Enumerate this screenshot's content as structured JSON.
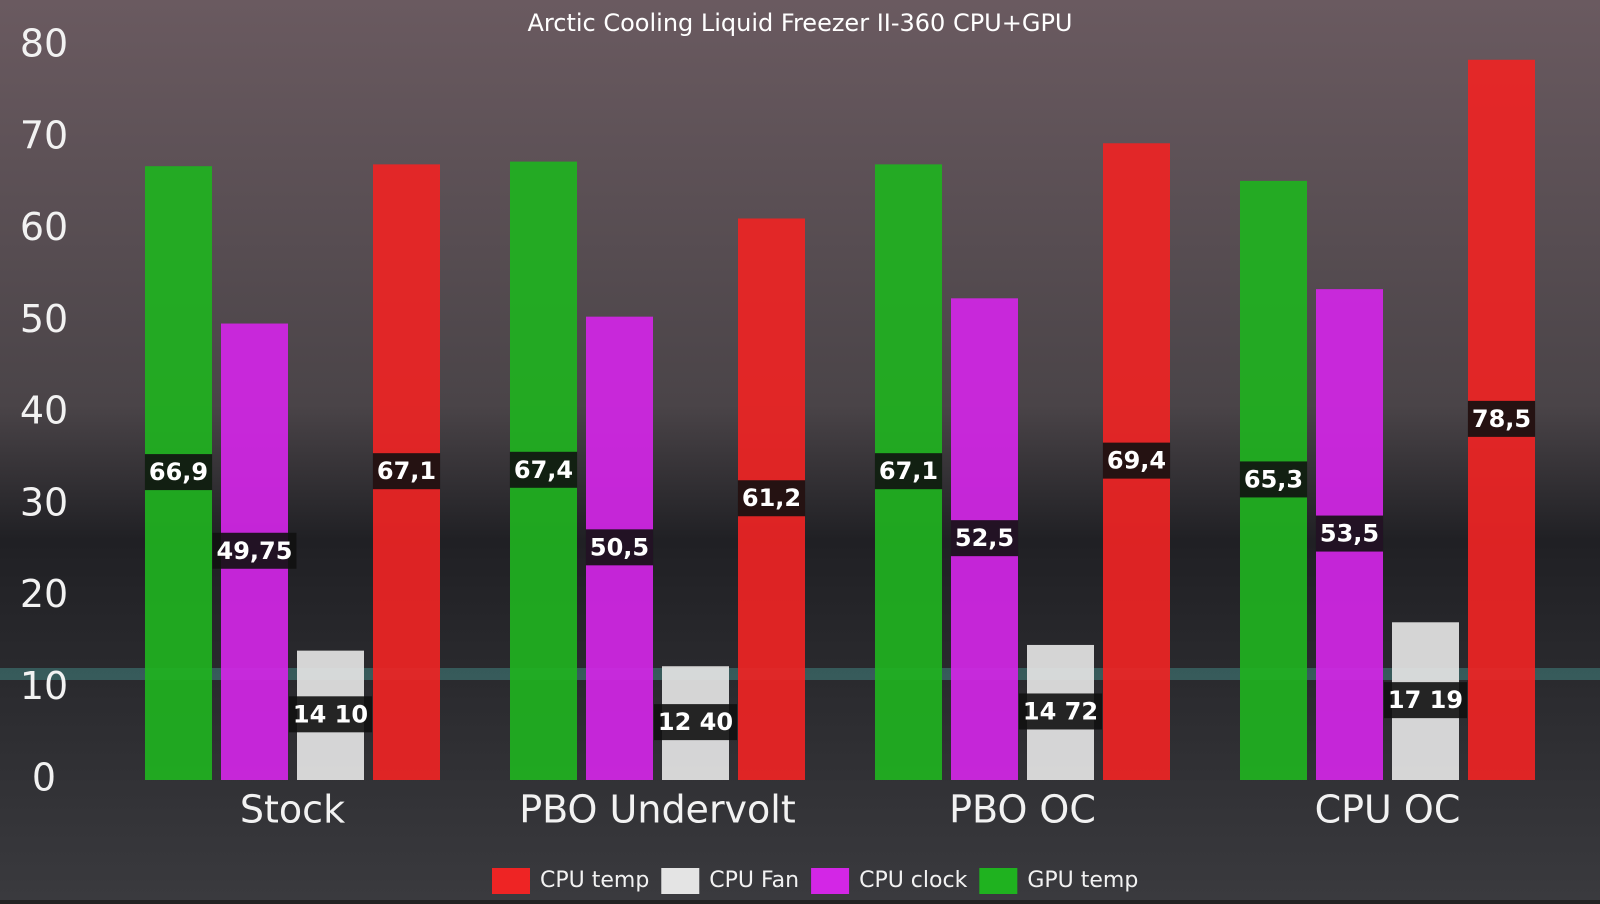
{
  "chart_data": {
    "type": "bar",
    "title": "Arctic Cooling Liquid Freezer II-360 CPU+GPU",
    "categories": [
      "Stock",
      "PBO Undervolt",
      "PBO OC",
      "CPU OC"
    ],
    "series": [
      {
        "name": "GPU temp",
        "color": "#1fb21f",
        "values": [
          66.9,
          67.4,
          67.1,
          65.3
        ],
        "value_labels": [
          "66,9",
          "67,4",
          "67,1",
          "65,3"
        ]
      },
      {
        "name": "CPU clock",
        "color": "#d326e6",
        "values": [
          49.75,
          50.5,
          52.5,
          53.5
        ],
        "value_labels": [
          "49,75",
          "50,5",
          "52,5",
          "53,5"
        ]
      },
      {
        "name": "CPU Fan",
        "color": "#e4e4e4",
        "values": [
          14.1,
          12.4,
          14.72,
          17.19
        ],
        "value_labels": [
          "14 10",
          "12 40",
          "14 72",
          "17 19"
        ]
      },
      {
        "name": "CPU temp",
        "color": "#ee2424",
        "values": [
          67.1,
          61.2,
          69.4,
          78.5
        ],
        "value_labels": [
          "67,1",
          "61,2",
          "69,4",
          "78,5"
        ]
      }
    ],
    "ylim": [
      0,
      80
    ],
    "yticks": [
      0,
      10,
      20,
      30,
      40,
      50,
      60,
      70,
      80
    ],
    "grid": false
  }
}
